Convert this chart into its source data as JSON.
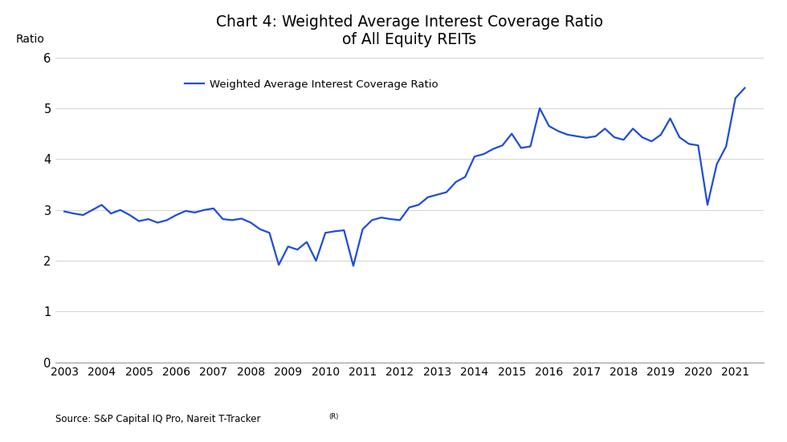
{
  "title": "Chart 4: Weighted Average Interest Coverage Ratio\nof All Equity REITs",
  "ylabel": "Ratio",
  "source": "Source: S&P Capital IQ Pro, Nareit T-Tracker",
  "source_superscript": "(R)",
  "legend_label": "Weighted Average Interest Coverage Ratio",
  "line_color": "#1e4dd8",
  "ylim": [
    0,
    6
  ],
  "yticks": [
    0,
    1,
    2,
    3,
    4,
    5,
    6
  ],
  "background_color": "#ffffff",
  "x_labels": [
    "2003",
    "2004",
    "2005",
    "2006",
    "2007",
    "2008",
    "2009",
    "2010",
    "2011",
    "2012",
    "2013",
    "2014",
    "2015",
    "2016",
    "2017",
    "2018",
    "2019",
    "2020",
    "2021"
  ],
  "xlim_left": 2002.75,
  "xlim_right": 2021.75,
  "data": [
    {
      "t": 2003.0,
      "v": 2.97
    },
    {
      "t": 2003.25,
      "v": 2.93
    },
    {
      "t": 2003.5,
      "v": 2.9
    },
    {
      "t": 2003.75,
      "v": 3.0
    },
    {
      "t": 2004.0,
      "v": 3.1
    },
    {
      "t": 2004.25,
      "v": 2.93
    },
    {
      "t": 2004.5,
      "v": 3.0
    },
    {
      "t": 2004.75,
      "v": 2.9
    },
    {
      "t": 2005.0,
      "v": 2.78
    },
    {
      "t": 2005.25,
      "v": 2.82
    },
    {
      "t": 2005.5,
      "v": 2.75
    },
    {
      "t": 2005.75,
      "v": 2.8
    },
    {
      "t": 2006.0,
      "v": 2.9
    },
    {
      "t": 2006.25,
      "v": 2.98
    },
    {
      "t": 2006.5,
      "v": 2.95
    },
    {
      "t": 2006.75,
      "v": 3.0
    },
    {
      "t": 2007.0,
      "v": 3.03
    },
    {
      "t": 2007.25,
      "v": 2.82
    },
    {
      "t": 2007.5,
      "v": 2.8
    },
    {
      "t": 2007.75,
      "v": 2.83
    },
    {
      "t": 2008.0,
      "v": 2.75
    },
    {
      "t": 2008.25,
      "v": 2.62
    },
    {
      "t": 2008.5,
      "v": 2.55
    },
    {
      "t": 2008.75,
      "v": 1.92
    },
    {
      "t": 2009.0,
      "v": 2.28
    },
    {
      "t": 2009.25,
      "v": 2.22
    },
    {
      "t": 2009.5,
      "v": 2.37
    },
    {
      "t": 2009.75,
      "v": 2.0
    },
    {
      "t": 2010.0,
      "v": 2.55
    },
    {
      "t": 2010.25,
      "v": 2.58
    },
    {
      "t": 2010.5,
      "v": 2.6
    },
    {
      "t": 2010.75,
      "v": 1.9
    },
    {
      "t": 2011.0,
      "v": 2.62
    },
    {
      "t": 2011.25,
      "v": 2.8
    },
    {
      "t": 2011.5,
      "v": 2.85
    },
    {
      "t": 2011.75,
      "v": 2.82
    },
    {
      "t": 2012.0,
      "v": 2.8
    },
    {
      "t": 2012.25,
      "v": 3.05
    },
    {
      "t": 2012.5,
      "v": 3.1
    },
    {
      "t": 2012.75,
      "v": 3.25
    },
    {
      "t": 2013.0,
      "v": 3.3
    },
    {
      "t": 2013.25,
      "v": 3.35
    },
    {
      "t": 2013.5,
      "v": 3.55
    },
    {
      "t": 2013.75,
      "v": 3.65
    },
    {
      "t": 2014.0,
      "v": 4.05
    },
    {
      "t": 2014.25,
      "v": 4.1
    },
    {
      "t": 2014.5,
      "v": 4.2
    },
    {
      "t": 2014.75,
      "v": 4.27
    },
    {
      "t": 2015.0,
      "v": 4.5
    },
    {
      "t": 2015.25,
      "v": 4.22
    },
    {
      "t": 2015.5,
      "v": 4.25
    },
    {
      "t": 2015.75,
      "v": 5.0
    },
    {
      "t": 2016.0,
      "v": 4.65
    },
    {
      "t": 2016.25,
      "v": 4.55
    },
    {
      "t": 2016.5,
      "v": 4.48
    },
    {
      "t": 2016.75,
      "v": 4.45
    },
    {
      "t": 2017.0,
      "v": 4.42
    },
    {
      "t": 2017.25,
      "v": 4.45
    },
    {
      "t": 2017.5,
      "v": 4.6
    },
    {
      "t": 2017.75,
      "v": 4.43
    },
    {
      "t": 2018.0,
      "v": 4.38
    },
    {
      "t": 2018.25,
      "v": 4.6
    },
    {
      "t": 2018.5,
      "v": 4.43
    },
    {
      "t": 2018.75,
      "v": 4.35
    },
    {
      "t": 2019.0,
      "v": 4.48
    },
    {
      "t": 2019.25,
      "v": 4.8
    },
    {
      "t": 2019.5,
      "v": 4.43
    },
    {
      "t": 2019.75,
      "v": 4.3
    },
    {
      "t": 2020.0,
      "v": 4.27
    },
    {
      "t": 2020.25,
      "v": 3.1
    },
    {
      "t": 2020.5,
      "v": 3.9
    },
    {
      "t": 2020.75,
      "v": 4.25
    },
    {
      "t": 2021.0,
      "v": 5.2
    },
    {
      "t": 2021.25,
      "v": 5.4
    }
  ]
}
